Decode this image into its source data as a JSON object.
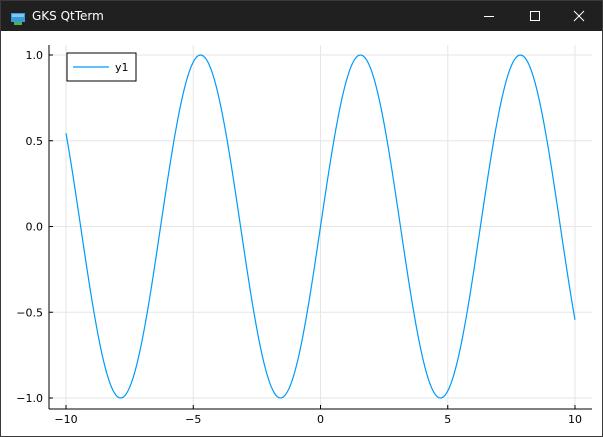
{
  "window": {
    "title": "GKS QtTerm",
    "icon": "gks-app-icon",
    "controls": [
      "minimize-icon",
      "maximize-icon",
      "close-icon"
    ]
  },
  "colors": {
    "titlebar": "#202020",
    "series": "#009AFA",
    "grid": "#e6e6e6"
  },
  "chart_data": {
    "type": "line",
    "function": "sin(x)",
    "x_range": [
      -10,
      10
    ],
    "xlim": [
      -10,
      10
    ],
    "ylim": [
      -1,
      1
    ],
    "xticks": [
      -10,
      -5,
      0,
      5,
      10
    ],
    "xtick_labels": [
      "−10",
      "−5",
      "0",
      "5",
      "10"
    ],
    "yticks": [
      -1.0,
      -0.5,
      0.0,
      0.5,
      1.0
    ],
    "ytick_labels": [
      "−1.0",
      "−0.5",
      "0.0",
      "0.5",
      "1.0"
    ],
    "grid": true,
    "legend": {
      "placement": "top-left",
      "entries": [
        "y1"
      ]
    },
    "series": [
      {
        "name": "y1",
        "samples": 400
      }
    ]
  }
}
